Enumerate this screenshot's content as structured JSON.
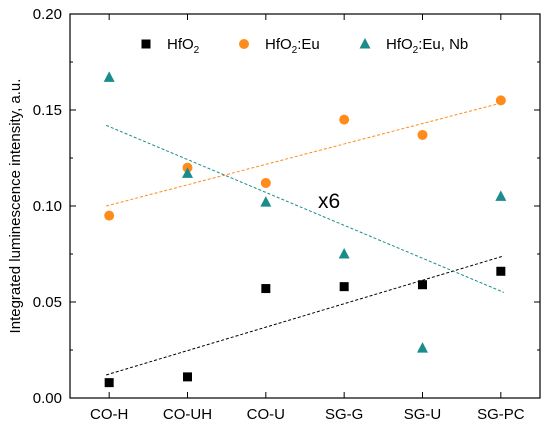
{
  "chart_data": {
    "type": "scatter",
    "categories": [
      "CO-H",
      "CO-UH",
      "CO-U",
      "SG-G",
      "SG-U",
      "SG-PC"
    ],
    "ylabel": "Integrated luminescence intensity, a.u.",
    "xlabel": "",
    "ylim": [
      0.0,
      0.2
    ],
    "yticks": [
      "0.00",
      "0.05",
      "0.10",
      "0.15",
      "0.20"
    ],
    "grid": false,
    "legend_position": "top",
    "annotation": "x6",
    "series": [
      {
        "name": "HfO2",
        "name_base": "HfO",
        "name_sub": "2",
        "name_suffix": "",
        "marker": "square",
        "color": "#000000",
        "values": [
          0.008,
          0.011,
          0.057,
          0.058,
          0.059,
          0.066
        ],
        "trend": [
          0.012,
          0.074
        ]
      },
      {
        "name": "HfO2:Eu",
        "name_base": "HfO",
        "name_sub": "2",
        "name_suffix": ":Eu",
        "marker": "circle",
        "color": "#ff8c1a",
        "values": [
          0.095,
          0.12,
          0.112,
          0.145,
          0.137,
          0.155
        ],
        "trend": [
          0.1,
          0.154
        ]
      },
      {
        "name": "HfO2:Eu, Nb",
        "name_base": "HfO",
        "name_sub": "2",
        "name_suffix": ":Eu, Nb",
        "marker": "triangle",
        "color": "#1a8c8c",
        "values": [
          0.167,
          0.117,
          0.102,
          0.075,
          0.026,
          0.105
        ],
        "trend": [
          0.142,
          0.055
        ]
      }
    ]
  }
}
